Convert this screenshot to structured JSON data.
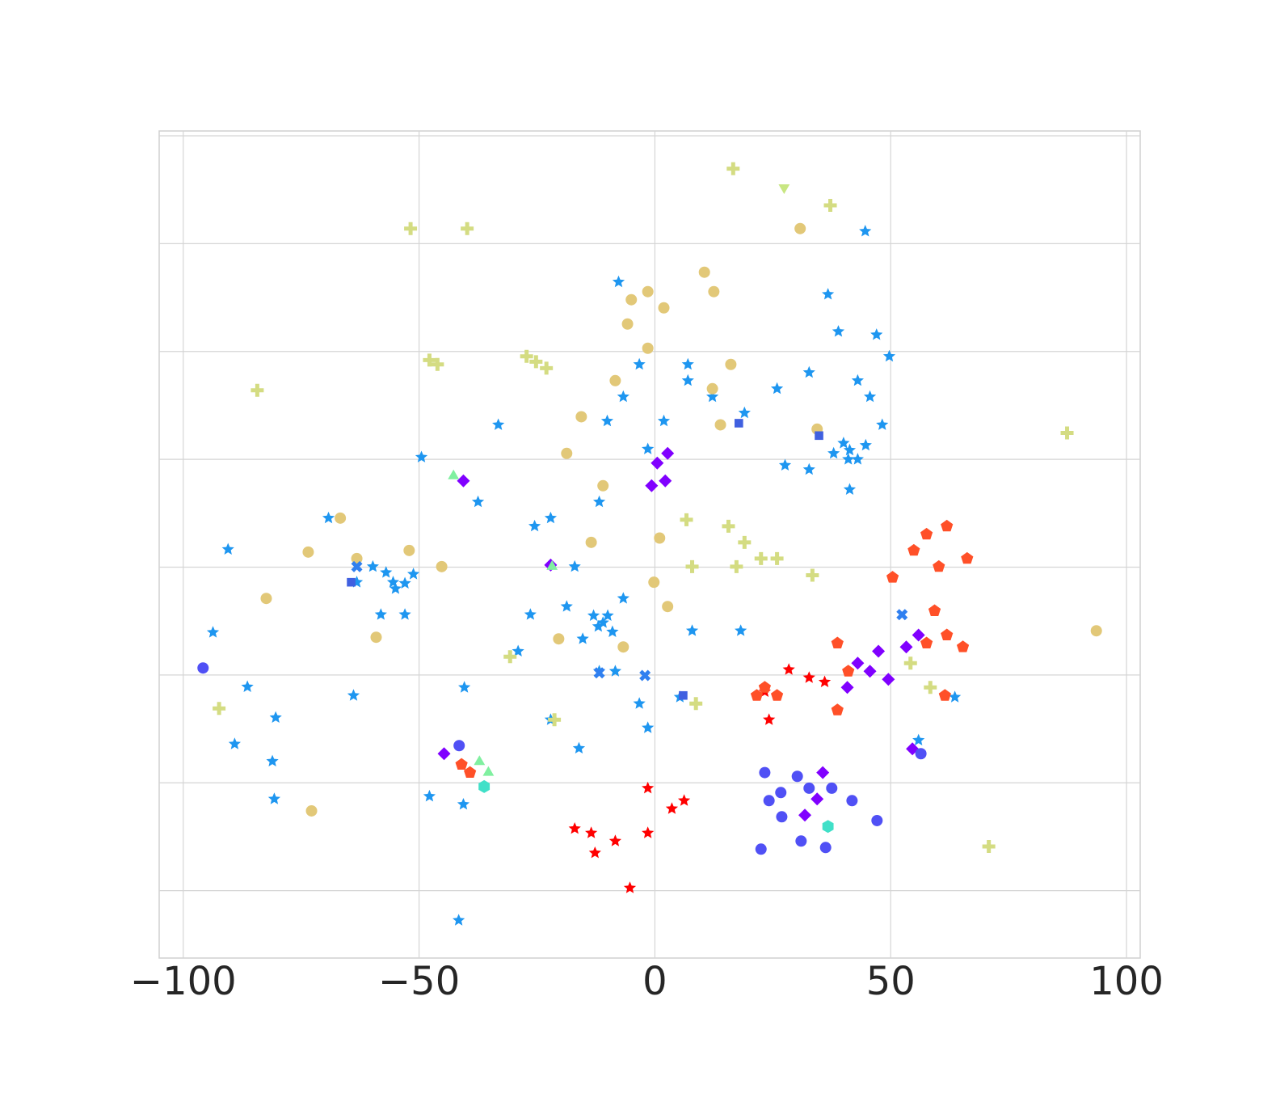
{
  "chart_data": {
    "type": "scatter",
    "grid": true,
    "xlim": [
      -105.1,
      102.9
    ],
    "ylim": [
      -72.5,
      80.9
    ],
    "xticks": [
      {
        "value": -100,
        "label": "−100"
      },
      {
        "value": -50,
        "label": "−50"
      },
      0,
      50,
      100
    ],
    "yticks": [
      -60,
      -40,
      -20,
      0,
      20,
      40,
      60,
      80
    ],
    "series": [
      {
        "marker": "star",
        "color": "#1e96f0",
        "x": [
          44.6,
          36.7,
          38.9,
          47.0,
          49.7,
          41.3,
          37.9,
          44.7,
          48.2,
          32.7,
          25.9,
          19.0,
          12.2,
          7.0,
          43.0,
          45.6,
          41.3,
          32.7,
          27.6,
          -7.7,
          -55.5,
          -59.8,
          -51.2,
          -53.0,
          -58.1,
          -63.2,
          -49.5,
          -37.5,
          -33.2,
          -69.2,
          -90.5,
          -93.7,
          -86.4,
          -80.4,
          -89.1,
          -81.1,
          -80.7,
          -63.9,
          -47.8,
          -40.6,
          -41.6,
          -40.4,
          -11.0,
          -15.3,
          -18.7,
          -6.7,
          -25.5,
          -22.1,
          -17.0,
          -11.8,
          -10.1,
          -6.7,
          -3.3,
          -1.5,
          1.9,
          7.0,
          -3.3,
          -1.5,
          7.9,
          18.2,
          -11.8,
          -8.4,
          -22.1,
          -16.1,
          -29.0,
          -26.4,
          5.3,
          55.9,
          63.6,
          41,
          40,
          43,
          -55,
          -57,
          -53,
          -12,
          -10,
          -13,
          -9
        ],
        "y": [
          62.3,
          50.6,
          43.7,
          43.1,
          39.1,
          21.7,
          21.1,
          22.6,
          26.4,
          36.1,
          33.1,
          28.6,
          31.6,
          34.6,
          34.6,
          31.6,
          14.4,
          18.1,
          18.9,
          52.9,
          -2.8,
          0.1,
          -1.3,
          -8.8,
          -8.8,
          -2.8,
          20.4,
          12.1,
          26.4,
          9.1,
          3.3,
          -12.1,
          -22.2,
          -27.9,
          -32.8,
          -36.0,
          -43.0,
          -23.8,
          -42.5,
          -44.0,
          -65.5,
          -22.3,
          -10.3,
          -13.3,
          -7.3,
          -5.8,
          7.6,
          9.1,
          0.1,
          12.1,
          27.1,
          31.6,
          37.6,
          21.9,
          27.1,
          37.6,
          -25.3,
          -29.8,
          -11.8,
          -11.8,
          -19.3,
          -19.3,
          -28.3,
          -33.6,
          -15.6,
          -8.8,
          -24.1,
          -32.1,
          -24.1,
          20,
          23,
          20,
          -4,
          -1,
          -3,
          -11,
          -9,
          -9,
          -12
        ]
      },
      {
        "marker": "circle",
        "color": "#e2c878",
        "x": [
          30.8,
          10.5,
          12.5,
          -5.0,
          -1.5,
          1.9,
          -5.8,
          -1.5,
          -8.4,
          16.1,
          12.2,
          13.9,
          -15.6,
          -18.7,
          -11.0,
          -13.5,
          1.0,
          -0.2,
          2.7,
          -6.7,
          -20.4,
          -73.5,
          -82.4,
          -59.1,
          -63.2,
          -52.1,
          -45.2,
          -72.8,
          93.6,
          -66.7,
          34.4
        ],
        "y": [
          62.8,
          54.7,
          51.1,
          49.6,
          51.1,
          48.1,
          45.1,
          40.6,
          34.6,
          37.6,
          33.1,
          26.4,
          27.9,
          21.1,
          15.1,
          4.6,
          5.4,
          -2.8,
          -7.3,
          -14.8,
          -13.3,
          2.8,
          -5.8,
          -13.0,
          1.6,
          3.1,
          0.1,
          -45.2,
          -11.8,
          9.1,
          25.6
        ]
      },
      {
        "marker": "plus",
        "color": "#d4dc82",
        "x": [
          16.6,
          37.2,
          -51.8,
          -39.8,
          -84.3,
          -46.1,
          -47.8,
          -25.2,
          -27.2,
          -23.0,
          19.0,
          15.6,
          22.5,
          17.3,
          25.9,
          6.7,
          33.4,
          87.4,
          -92.4,
          70.8,
          54.2,
          7.9,
          8.7,
          -30.7,
          -21.3,
          58.4
        ],
        "y": [
          73.9,
          67.1,
          62.8,
          62.8,
          32.8,
          37.6,
          38.4,
          38.1,
          39.1,
          36.9,
          4.6,
          7.6,
          1.6,
          0.1,
          1.6,
          8.8,
          -1.5,
          24.9,
          -26.2,
          -51.8,
          -17.8,
          0.1,
          -25.3,
          -16.6,
          -28.3,
          -22.3
        ]
      },
      {
        "marker": "triangle-down",
        "color": "#c8e682",
        "x": [
          27.4
        ],
        "y": [
          70.4
        ]
      },
      {
        "marker": "star",
        "color": "#ff0000",
        "x": [
          -13.5,
          -17.0,
          -8.4,
          -1.5,
          3.6,
          6.2,
          -1.5,
          -12.7,
          -5.3,
          23.3,
          28.4,
          32.7,
          36.0,
          24.2
        ],
        "y": [
          -49.3,
          -48.5,
          -50.8,
          -49.3,
          -44.8,
          -43.3,
          -41.0,
          -53.0,
          -59.5,
          -23.1,
          -19.0,
          -20.5,
          -21.3,
          -28.3
        ]
      },
      {
        "marker": "pentagon",
        "color": "#ff5028",
        "x": [
          57.6,
          54.9,
          60.2,
          66.2,
          61.9,
          50.4,
          59.3,
          61.9,
          57.6,
          65.3,
          38.7,
          41.0,
          38.7,
          23.3,
          21.6,
          25.9,
          -41.0,
          -39.2,
          61.5
        ],
        "y": [
          6.1,
          3.1,
          0.1,
          1.6,
          7.6,
          -1.9,
          -8.1,
          -12.6,
          -14.1,
          -14.8,
          -14.1,
          -19.3,
          -26.5,
          -22.3,
          -23.8,
          -23.8,
          -36.6,
          -38.1,
          -23.8
        ]
      },
      {
        "marker": "diamond",
        "color": "#8000ff",
        "x": [
          0.5,
          -0.7,
          2.7,
          2.2,
          -40.6,
          43.0,
          45.6,
          47.4,
          40.8,
          53.3,
          55.9,
          49.5,
          35.6,
          34.4,
          31.8,
          -44.7,
          54.6,
          -22.1
        ],
        "y": [
          19.3,
          15.1,
          21.1,
          16.0,
          16.0,
          -17.8,
          -19.3,
          -15.6,
          -22.3,
          -14.8,
          -12.6,
          -20.8,
          -38.1,
          -43.0,
          -46.0,
          -34.6,
          -33.7,
          0.4
        ]
      },
      {
        "marker": "circle",
        "color": "#5050f5",
        "x": [
          -95.8,
          23.3,
          26.7,
          24.2,
          30.2,
          32.7,
          22.5,
          31.0,
          36.2,
          37.5,
          41.8,
          47.1,
          26.9,
          -41.5,
          56.4
        ],
        "y": [
          -18.7,
          -38.1,
          -41.8,
          -43.3,
          -38.8,
          -41.0,
          -52.3,
          -50.8,
          -52.0,
          -41.0,
          -43.3,
          -47.0,
          -46.3,
          -33.1,
          -34.6
        ]
      },
      {
        "marker": "triangle-up",
        "color": "#80f0a0",
        "x": [
          -42.7,
          -21.8,
          -37.2,
          -35.3
        ],
        "y": [
          16.9,
          0.1,
          -36.1,
          -38.1
        ]
      },
      {
        "marker": "hexagon",
        "color": "#40e0c8",
        "x": [
          36.7,
          -36.2
        ],
        "y": [
          -48.1,
          -40.7
        ]
      },
      {
        "marker": "x",
        "color": "#3080f0",
        "x": [
          52.4,
          -2.1,
          -11.8,
          -63.2
        ],
        "y": [
          -8.8,
          -20.1,
          -19.6,
          0.1
        ]
      },
      {
        "marker": "square",
        "color": "#4060e0",
        "x": [
          17.8,
          34.8,
          -64.4,
          6.0
        ],
        "y": [
          26.7,
          24.4,
          -2.8,
          -23.8
        ]
      }
    ]
  }
}
